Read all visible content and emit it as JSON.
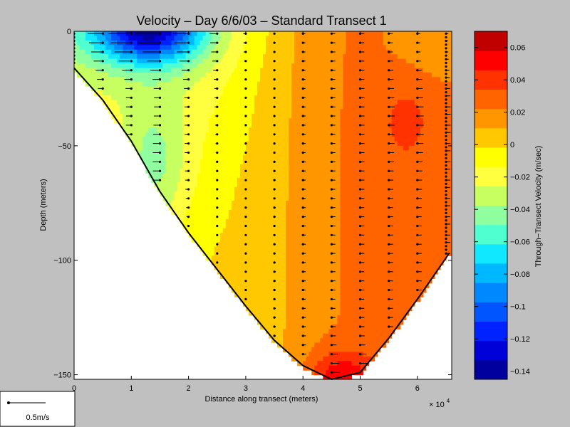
{
  "chart_data": {
    "type": "heatmap",
    "title": "Velocity – Day 6/6/03 – Standard Transect 1",
    "xlabel": "Distance along transect (meters)",
    "ylabel": "Depth (meters)",
    "x_multiplier_label": "× 10",
    "x_multiplier_exp": "4",
    "xlim": [
      0,
      66000
    ],
    "ylim": [
      -152,
      0
    ],
    "x_ticks": [
      0,
      10000,
      20000,
      30000,
      40000,
      50000,
      60000
    ],
    "x_tick_labels": [
      "0",
      "1",
      "2",
      "3",
      "4",
      "5",
      "6"
    ],
    "y_ticks": [
      0,
      -50,
      -100,
      -150
    ],
    "y_tick_labels": [
      "0",
      "−50",
      "−100",
      "−150"
    ],
    "bottom_profile": {
      "x": [
        0,
        5000,
        10000,
        15000,
        20000,
        25000,
        30000,
        35000,
        40000,
        45000,
        50000,
        55000,
        60000,
        65000,
        65500
      ],
      "depth": [
        -16,
        -30,
        -48,
        -70,
        -88,
        -104,
        -120,
        -135,
        -146,
        -152,
        -149,
        -134,
        -117,
        -99,
        -97
      ]
    },
    "velocity_field": {
      "units": "m/sec",
      "regions": [
        {
          "zone": "surface west (x 0.8–1.5e4, top 10 m)",
          "value": -0.12
        },
        {
          "zone": "upper west (x 0.5–3e4, top 30 m)",
          "value": -0.07
        },
        {
          "zone": "west slope mid-depth",
          "value": -0.02
        },
        {
          "zone": "central column",
          "value": 0.0
        },
        {
          "zone": "east column (x 4–6.5e4)",
          "value": 0.02
        },
        {
          "zone": "east upper core (x 5.5–6e4, depth 20–60 m)",
          "value": 0.035
        },
        {
          "zone": "bottom trough (x 4.3–5e4, depth 135–152 m)",
          "value": 0.055
        }
      ]
    },
    "arrow_columns_x": [
      0,
      5000,
      10000,
      15000,
      20000,
      25000,
      30000,
      35000,
      40000,
      45000,
      50000,
      55000,
      60000,
      65000
    ],
    "colorbar": {
      "label": "Through−Transect Velocity (m/sec)",
      "range": [
        -0.145,
        0.07
      ],
      "ticks": [
        0.06,
        0.04,
        0.02,
        0,
        -0.02,
        -0.04,
        -0.06,
        -0.08,
        -0.1,
        -0.12,
        -0.14
      ],
      "tick_labels": [
        "0.06",
        "0.04",
        "0.02",
        "0",
        "−0.02",
        "−0.04",
        "−0.06",
        "−0.08",
        "−0.1",
        "−0.12",
        "−0.14"
      ],
      "colors": [
        "#00009f",
        "#0000d8",
        "#0022ff",
        "#0055ff",
        "#0088ff",
        "#00b8ff",
        "#10e8ff",
        "#50ffd0",
        "#90ffa0",
        "#c8ff60",
        "#ffff40",
        "#ffff00",
        "#ffc800",
        "#ff9600",
        "#ff6400",
        "#ff3200",
        "#ff0000",
        "#c00000"
      ]
    },
    "scale_arrow_label": "0.5m/s"
  }
}
